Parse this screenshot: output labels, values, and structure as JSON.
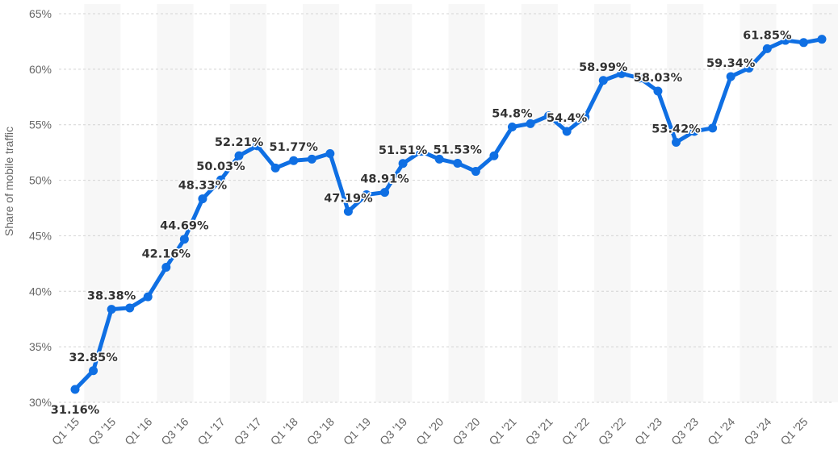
{
  "chart_data": {
    "type": "line",
    "title": "",
    "ylabel": "Share of mobile traffic",
    "xlabel": "",
    "ylim": [
      30,
      65
    ],
    "yticks": [
      30,
      35,
      40,
      45,
      50,
      55,
      60,
      65
    ],
    "ytick_labels": [
      "30%",
      "35%",
      "40%",
      "45%",
      "50%",
      "55%",
      "60%",
      "65%"
    ],
    "grid": true,
    "colors": {
      "line": "#0f6fe3",
      "band": "#f7f7f7"
    },
    "categories": [
      "Q1 '15",
      "Q2 '15",
      "Q3 '15",
      "Q4 '15",
      "Q1 '16",
      "Q2 '16",
      "Q3 '16",
      "Q4 '16",
      "Q1 '17",
      "Q2 '17",
      "Q3 '17",
      "Q4 '17",
      "Q1 '18",
      "Q2 '18",
      "Q3 '18",
      "Q4 '18",
      "Q1 '19",
      "Q2 '19",
      "Q3 '19",
      "Q4 '19",
      "Q1 '20",
      "Q2 '20",
      "Q3 '20",
      "Q4 '20",
      "Q1 '21",
      "Q2 '21",
      "Q3 '21",
      "Q4 '21",
      "Q1 '22",
      "Q2 '22",
      "Q3 '22",
      "Q4 '22",
      "Q1 '23",
      "Q2 '23",
      "Q3 '23",
      "Q4 '23",
      "Q1 '24",
      "Q2 '24",
      "Q3 '24",
      "Q4 '24",
      "Q1 '25",
      "Q2 '25"
    ],
    "visible_tick_labels": [
      "Q1 '15",
      "Q3 '15",
      "Q1 '16",
      "Q3 '16",
      "Q1 '17",
      "Q3 '17",
      "Q1 '18",
      "Q3 '18",
      "Q1 '19",
      "Q3 '19",
      "Q1 '20",
      "Q3 '20",
      "Q1 '21",
      "Q3 '21",
      "Q1 '22",
      "Q3 '22",
      "Q1 '23",
      "Q3 '23",
      "Q1 '24",
      "Q3 '24",
      "Q1 '25"
    ],
    "series": [
      {
        "values": [
          31.16,
          32.85,
          38.38,
          38.5,
          39.5,
          42.16,
          44.69,
          48.33,
          50.03,
          52.21,
          53.1,
          51.1,
          51.77,
          51.9,
          52.4,
          47.19,
          48.7,
          48.91,
          51.51,
          52.6,
          51.9,
          51.53,
          50.8,
          52.2,
          54.8,
          55.1,
          55.8,
          54.4,
          55.7,
          58.99,
          59.6,
          59.2,
          58.03,
          53.42,
          54.4,
          54.7,
          59.34,
          60.1,
          61.85,
          62.6,
          62.4,
          62.7
        ],
        "labels": [
          "31.16%",
          "32.85%",
          "38.38%",
          "",
          "",
          "42.16%",
          "44.69%",
          "48.33%",
          "50.03%",
          "52.21%",
          "",
          "",
          "51.77%",
          "",
          "",
          "47.19%",
          "",
          "48.91%",
          "51.51%",
          "",
          "",
          "51.53%",
          "",
          "",
          "54.8%",
          "",
          "",
          "54.4%",
          "",
          "58.99%",
          "",
          "",
          "58.03%",
          "53.42%",
          "",
          "",
          "59.34%",
          "",
          "61.85%",
          "",
          "",
          ""
        ]
      }
    ]
  }
}
